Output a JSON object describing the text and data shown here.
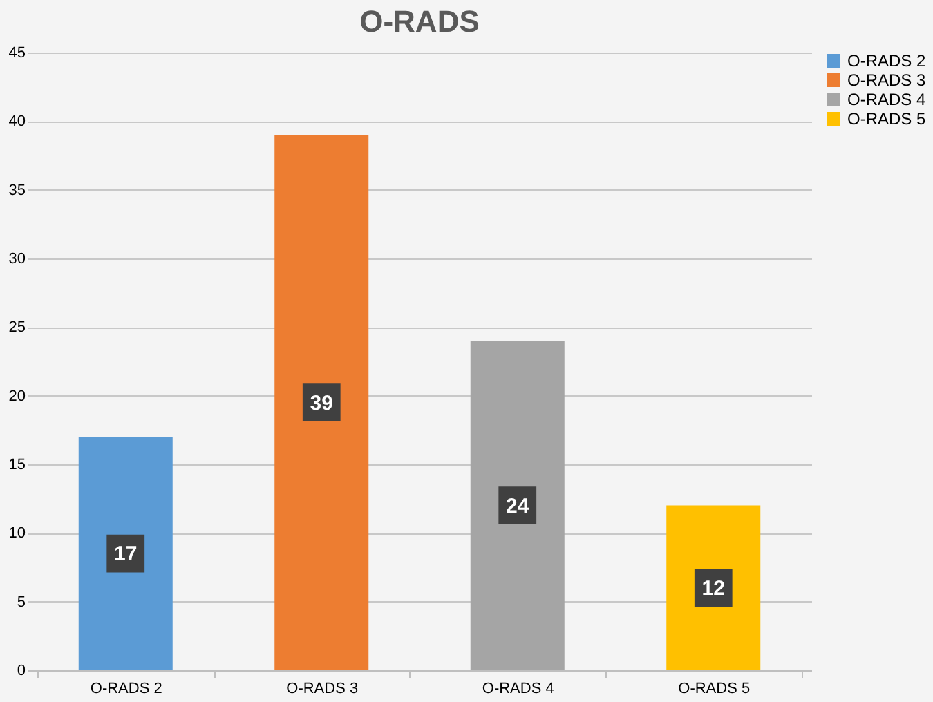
{
  "chart_data": {
    "type": "bar",
    "title": "O-RADS",
    "categories": [
      "O-RADS 2",
      "O-RADS 3",
      "O-RADS 4",
      "O-RADS 5"
    ],
    "series": [
      {
        "name": "O-RADS 2",
        "color": "#5b9bd5",
        "values": [
          17,
          null,
          null,
          null
        ]
      },
      {
        "name": "O-RADS 3",
        "color": "#ed7d31",
        "values": [
          null,
          39,
          null,
          null
        ]
      },
      {
        "name": "O-RADS 4",
        "color": "#a5a5a5",
        "values": [
          null,
          null,
          24,
          null
        ]
      },
      {
        "name": "O-RADS 5",
        "color": "#ffc000",
        "values": [
          null,
          null,
          null,
          12
        ]
      }
    ],
    "ylim": [
      0,
      45
    ],
    "yticks": [
      0,
      5,
      10,
      15,
      20,
      25,
      30,
      35,
      40,
      45
    ],
    "grid": "y",
    "legend": "right",
    "data_labels": true
  }
}
